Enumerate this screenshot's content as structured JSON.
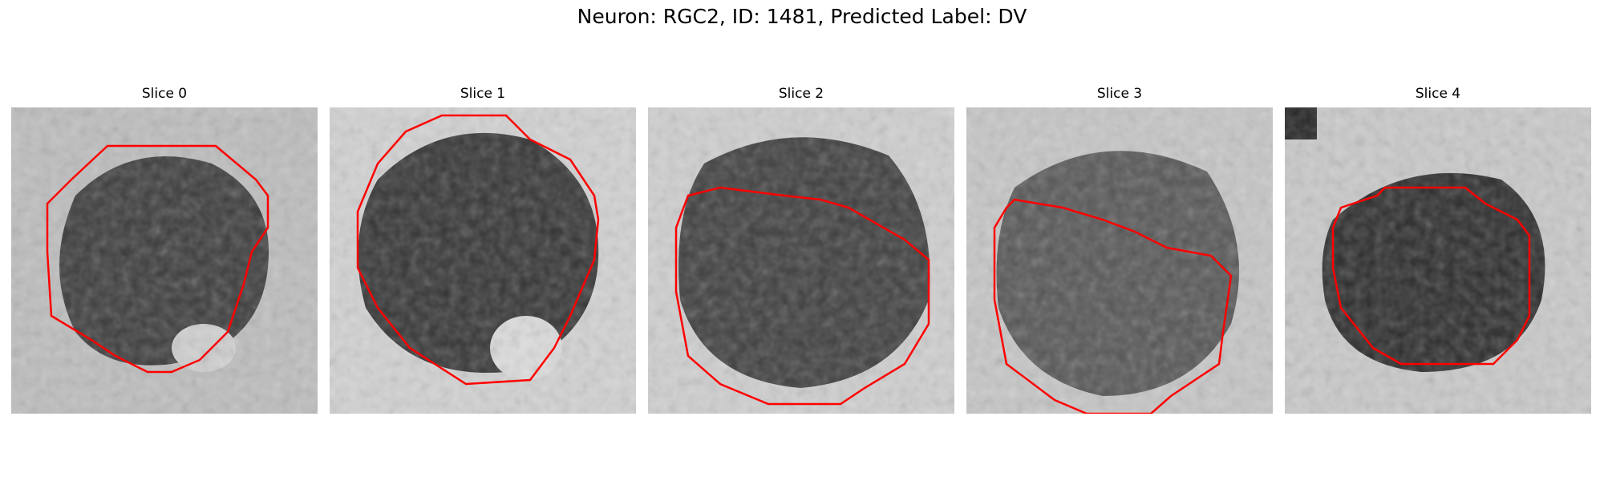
{
  "figure": {
    "title": "Neuron: RGC2, ID: 1481, Predicted Label: DV",
    "contour_color": "#ff0000",
    "colormap": "grayscale",
    "panels": [
      {
        "title": "Slice 0"
      },
      {
        "title": "Slice 1"
      },
      {
        "title": "Slice 2"
      },
      {
        "title": "Slice 3"
      },
      {
        "title": "Slice 4"
      }
    ]
  }
}
